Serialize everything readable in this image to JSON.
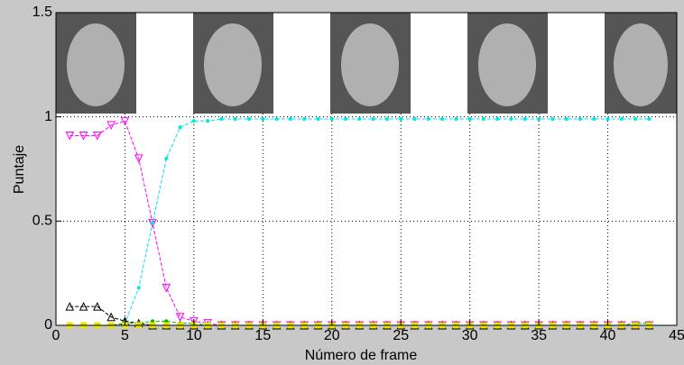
{
  "chart_data": {
    "type": "line",
    "xlabel": "Número de frame",
    "ylabel": "Puntaje",
    "x": [
      1,
      2,
      3,
      4,
      5,
      6,
      7,
      8,
      9,
      10,
      11,
      12,
      13,
      14,
      15,
      16,
      17,
      18,
      19,
      20,
      21,
      22,
      23,
      24,
      25,
      26,
      27,
      28,
      29,
      30,
      31,
      32,
      33,
      34,
      35,
      36,
      37,
      38,
      39,
      40,
      41,
      42,
      43
    ],
    "series": [
      {
        "color": "#ff00ff",
        "marker": "triangle-down",
        "values": [
          0.91,
          0.91,
          0.91,
          0.96,
          0.98,
          0.8,
          0.49,
          0.18,
          0.04,
          0.02,
          0.01,
          0,
          0,
          0,
          0,
          0,
          0,
          0,
          0,
          0,
          0,
          0,
          0,
          0,
          0,
          0,
          0,
          0,
          0,
          0,
          0,
          0,
          0,
          0,
          0,
          0,
          0,
          0,
          0,
          0,
          0,
          0,
          0
        ]
      },
      {
        "color": "#00e5e5",
        "marker": "dot",
        "values": [
          0,
          0,
          0,
          0,
          0.01,
          0.18,
          0.49,
          0.8,
          0.95,
          0.98,
          0.98,
          0.99,
          0.99,
          0.99,
          0.99,
          0.99,
          0.99,
          0.99,
          0.99,
          0.99,
          0.99,
          0.99,
          0.99,
          0.99,
          0.99,
          0.99,
          0.99,
          0.99,
          0.99,
          0.99,
          0.99,
          0.99,
          0.99,
          0.99,
          0.99,
          0.99,
          0.99,
          0.99,
          0.99,
          0.99,
          0.99,
          0.99,
          0.99
        ]
      },
      {
        "color": "#000000",
        "marker": "triangle-up",
        "values": [
          0.09,
          0.09,
          0.09,
          0.04,
          0.02,
          0.01,
          0,
          0,
          0,
          0,
          0,
          0,
          0,
          0,
          0,
          0,
          0,
          0,
          0,
          0,
          0,
          0,
          0,
          0,
          0,
          0,
          0,
          0,
          0,
          0,
          0,
          0,
          0,
          0,
          0,
          0,
          0,
          0,
          0,
          0,
          0,
          0,
          0
        ]
      },
      {
        "color": "#00b000",
        "marker": "dot",
        "values": [
          0,
          0,
          0,
          0,
          0.01,
          0.01,
          0.02,
          0.02,
          0.01,
          0.01,
          0,
          0,
          0,
          0,
          0,
          0,
          0,
          0,
          0,
          0,
          0,
          0,
          0,
          0,
          0,
          0,
          0,
          0,
          0,
          0,
          0,
          0,
          0,
          0,
          0,
          0,
          0,
          0,
          0,
          0,
          0,
          0.01,
          0.01
        ]
      },
      {
        "color": "#e5e500",
        "marker": "square",
        "values": [
          0,
          0,
          0,
          0,
          0,
          0,
          0,
          0,
          0,
          0,
          0,
          0,
          0,
          0,
          0,
          0,
          0,
          0,
          0,
          0,
          0,
          0,
          0,
          0,
          0,
          0,
          0,
          0,
          0,
          0,
          0,
          0,
          0,
          0,
          0,
          0,
          0,
          0,
          0,
          0,
          0,
          0,
          0
        ]
      }
    ],
    "xlim": [
      0,
      45
    ],
    "xticks": [
      0,
      5,
      10,
      15,
      20,
      25,
      30,
      35,
      40,
      45
    ],
    "ylim": [
      0,
      1.5
    ],
    "yticks": [
      0,
      0.5,
      1,
      1.5
    ],
    "grid": true
  }
}
